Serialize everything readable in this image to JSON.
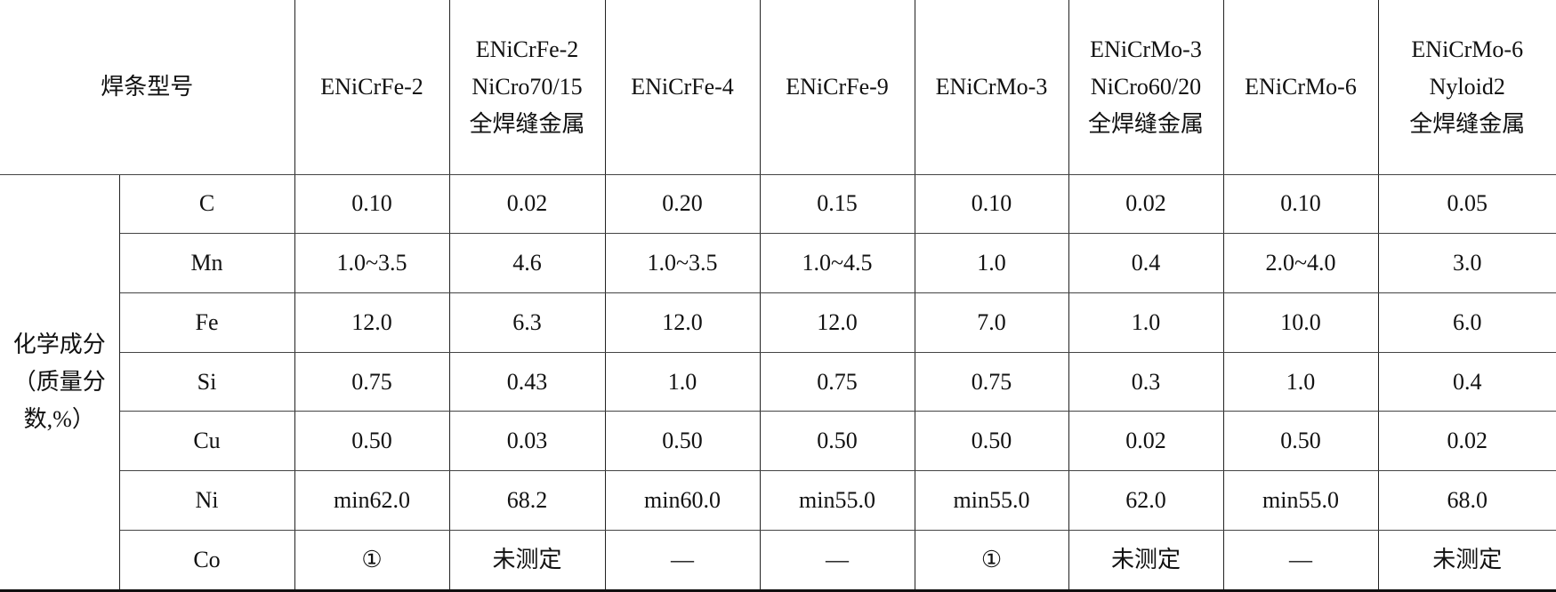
{
  "header": {
    "title": "焊条型号",
    "columns": [
      [
        "ENiCrFe-2"
      ],
      [
        "ENiCrFe-2",
        "NiCro70/15",
        "全焊缝金属"
      ],
      [
        "ENiCrFe-4"
      ],
      [
        "ENiCrFe-9"
      ],
      [
        "ENiCrMo-3"
      ],
      [
        "ENiCrMo-3",
        "NiCro60/20",
        "全焊缝金属"
      ],
      [
        "ENiCrMo-6"
      ],
      [
        "ENiCrMo-6",
        "Nyloid2",
        "全焊缝金属"
      ]
    ]
  },
  "group_label": [
    "化学成分",
    "（质量分",
    "数,%）"
  ],
  "rows": [
    {
      "element": "C",
      "values": [
        "0.10",
        "0.02",
        "0.20",
        "0.15",
        "0.10",
        "0.02",
        "0.10",
        "0.05"
      ]
    },
    {
      "element": "Mn",
      "values": [
        "1.0~3.5",
        "4.6",
        "1.0~3.5",
        "1.0~4.5",
        "1.0",
        "0.4",
        "2.0~4.0",
        "3.0"
      ]
    },
    {
      "element": "Fe",
      "values": [
        "12.0",
        "6.3",
        "12.0",
        "12.0",
        "7.0",
        "1.0",
        "10.0",
        "6.0"
      ]
    },
    {
      "element": "Si",
      "values": [
        "0.75",
        "0.43",
        "1.0",
        "0.75",
        "0.75",
        "0.3",
        "1.0",
        "0.4"
      ]
    },
    {
      "element": "Cu",
      "values": [
        "0.50",
        "0.03",
        "0.50",
        "0.50",
        "0.50",
        "0.02",
        "0.50",
        "0.02"
      ]
    },
    {
      "element": "Ni",
      "values": [
        "min62.0",
        "68.2",
        "min60.0",
        "min55.0",
        "min55.0",
        "62.0",
        "min55.0",
        "68.0"
      ]
    },
    {
      "element": "Co",
      "values": [
        "①",
        "未测定",
        "—",
        "—",
        "①",
        "未测定",
        "—",
        "未测定"
      ]
    }
  ]
}
